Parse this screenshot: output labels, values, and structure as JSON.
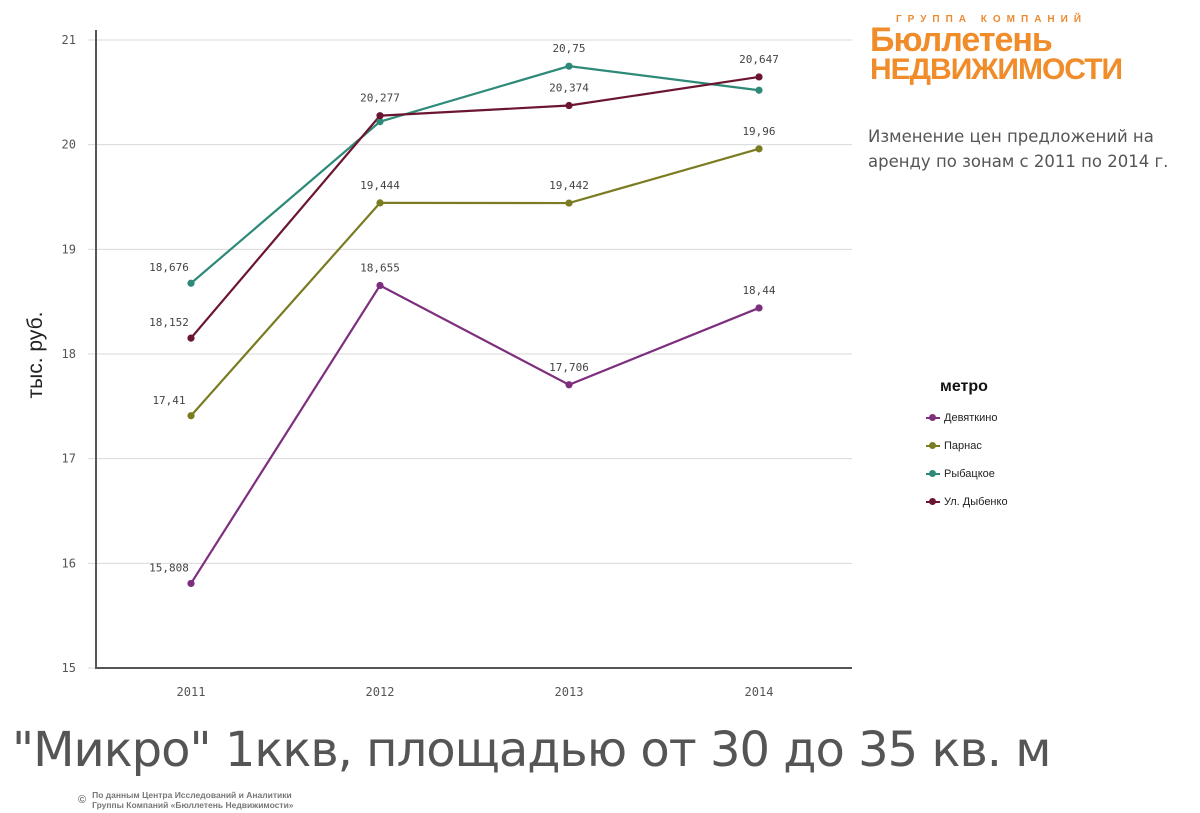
{
  "chart_data": {
    "type": "line",
    "title": "\"Микро\" 1ккв, площадью от 30 до 35 кв. м",
    "subtitle": "Изменение цен предложений на аренду по зонам с 2011 по 2014 г.",
    "xlabel": "",
    "ylabel": "тыс. руб.",
    "categories": [
      "2011",
      "2012",
      "2013",
      "2014"
    ],
    "ylim": [
      15,
      21
    ],
    "yticks": [
      "15",
      "16",
      "17",
      "18",
      "19",
      "20",
      "21"
    ],
    "grid": true,
    "legend_title": "метро",
    "legend_position": "right",
    "series": [
      {
        "name": "Девяткино",
        "color": "#7d2f7e",
        "values": [
          15.808,
          18.655,
          17.706,
          18.44
        ],
        "labels": [
          "15,808",
          "18,655",
          "17,706",
          "18,44"
        ]
      },
      {
        "name": "Парнас",
        "color": "#7b7c22",
        "values": [
          17.41,
          19.444,
          19.442,
          19.96
        ],
        "labels": [
          "17,41",
          "19,444",
          "19,442",
          "19,96"
        ]
      },
      {
        "name": "Рыбацкое",
        "color": "#2e8a78",
        "values": [
          18.676,
          20.22,
          20.75,
          20.52
        ],
        "labels": [
          "18,676",
          "",
          "20,75",
          ""
        ]
      },
      {
        "name": "Ул. Дыбенко",
        "color": "#6b1530",
        "values": [
          18.152,
          20.277,
          20.374,
          20.647
        ],
        "labels": [
          "18,152",
          "20,277",
          "20,374",
          "20,647"
        ]
      }
    ]
  },
  "logo": {
    "top": "ГРУППА КОМПАНИЙ",
    "line1": "Бюллетень",
    "line2": "недвижимости"
  },
  "source": {
    "copyright": "©",
    "line1": "По данным Центра Исследований и Аналитики",
    "line2": "Группы Компаний «Бюллетень Недвижимости»"
  }
}
